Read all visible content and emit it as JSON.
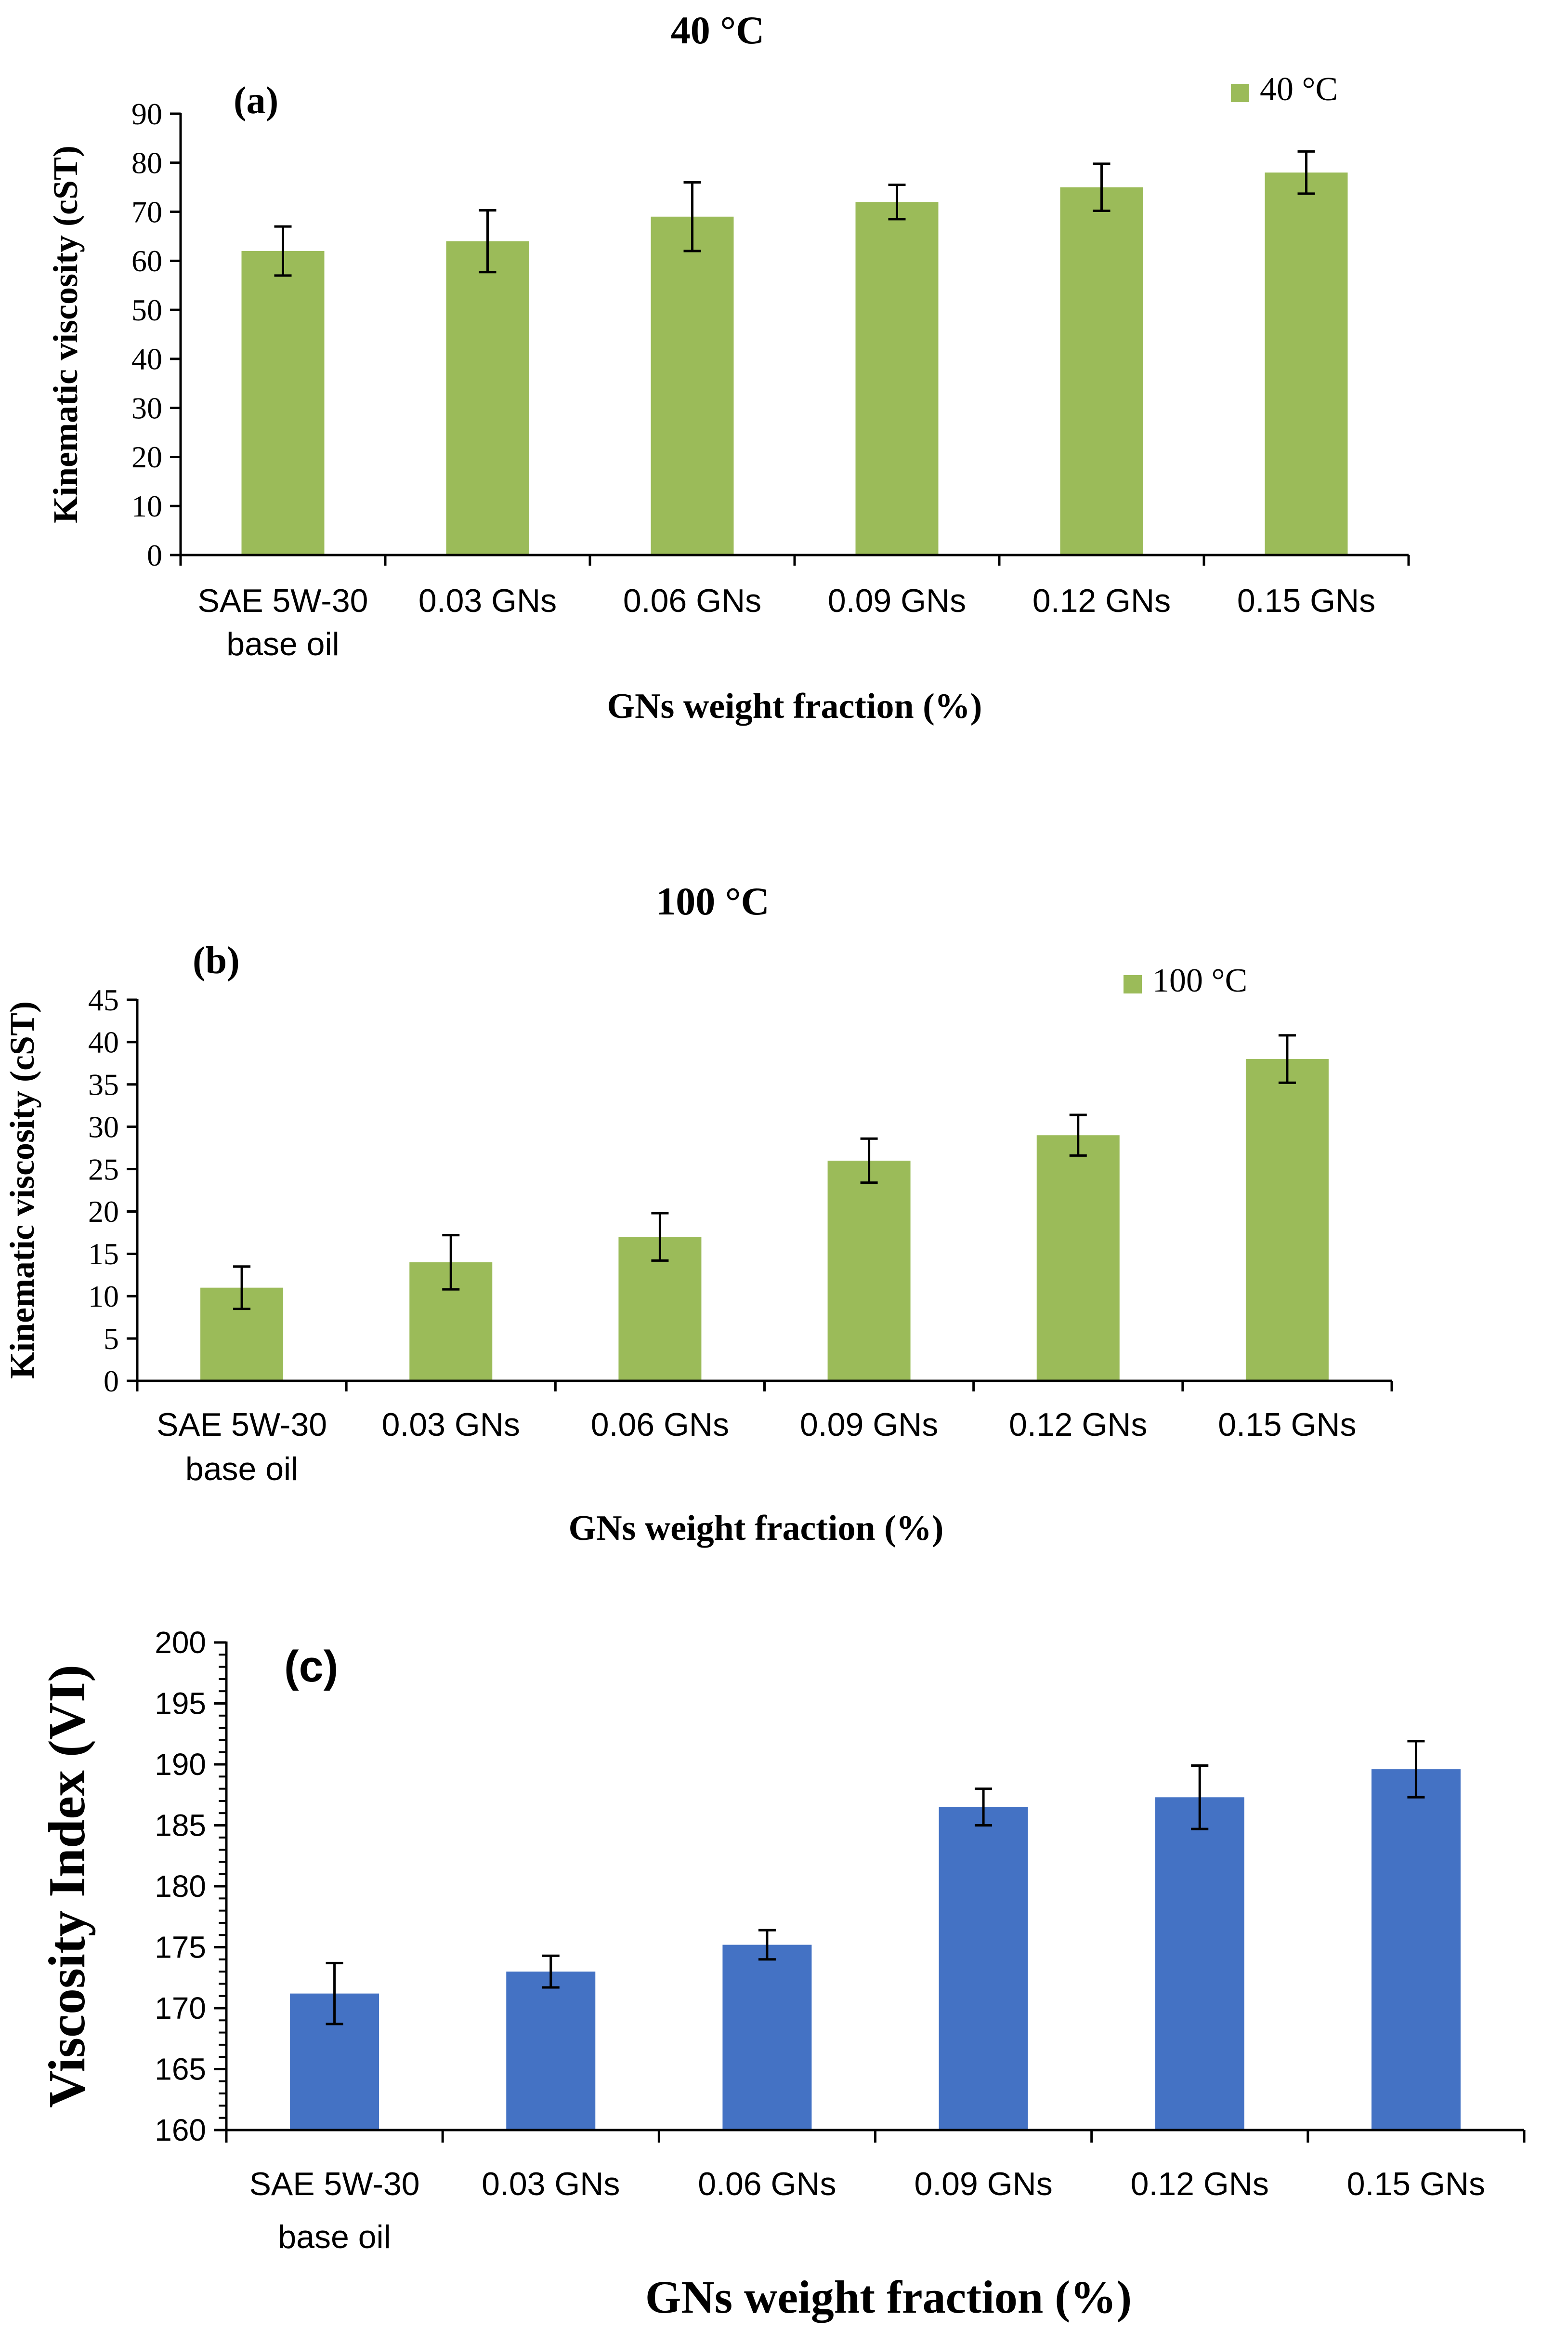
{
  "chart_data": [
    {
      "type": "bar",
      "panel_label": "(a)",
      "title": "40 °C",
      "legend": "40 °C",
      "legend_position": "top-right",
      "xlabel": "GNs weight fraction (%)",
      "ylabel": "Kinematic viscosity (cST)",
      "categories": [
        "SAE 5W-30 base oil",
        "0.03 GNs",
        "0.06 GNs",
        "0.09 GNs",
        "0.12 GNs",
        "0.15 GNs"
      ],
      "category_lines": [
        [
          "SAE 5W-30",
          "base oil"
        ],
        [
          "0.03 GNs"
        ],
        [
          "0.06 GNs"
        ],
        [
          "0.09 GNs"
        ],
        [
          "0.12 GNs"
        ],
        [
          "0.15 GNs"
        ]
      ],
      "values": [
        62,
        64,
        69,
        72,
        75,
        78
      ],
      "errors": [
        5,
        6.3,
        7,
        3.5,
        4.8,
        4.3
      ],
      "ylim": [
        0,
        90
      ],
      "ytick_step": 10,
      "color": "#9BBB59",
      "grid": false
    },
    {
      "type": "bar",
      "panel_label": "(b)",
      "title": "100 °C",
      "legend": "100 °C",
      "legend_position": "top-right",
      "xlabel": "GNs weight fraction (%)",
      "ylabel": "Kinematic viscosity (cST)",
      "categories": [
        "SAE 5W-30 base oil",
        "0.03 GNs",
        "0.06 GNs",
        "0.09 GNs",
        "0.12 GNs",
        "0.15 GNs"
      ],
      "category_lines": [
        [
          "SAE 5W-30",
          "base oil"
        ],
        [
          "0.03 GNs"
        ],
        [
          "0.06 GNs"
        ],
        [
          "0.09 GNs"
        ],
        [
          "0.12 GNs"
        ],
        [
          "0.15 GNs"
        ]
      ],
      "values": [
        11,
        14,
        17,
        26,
        29,
        38
      ],
      "errors": [
        2.5,
        3.2,
        2.8,
        2.6,
        2.4,
        2.8
      ],
      "ylim": [
        0,
        45
      ],
      "ytick_step": 5,
      "color": "#9BBB59",
      "grid": false
    },
    {
      "type": "bar",
      "panel_label": "(c)",
      "title": "",
      "legend": "",
      "xlabel": "GNs weight fraction (%)",
      "ylabel": "Viscosity Index (VI)",
      "categories": [
        "SAE 5W-30 base oil",
        "0.03 GNs",
        "0.06 GNs",
        "0.09 GNs",
        "0.12 GNs",
        "0.15 GNs"
      ],
      "category_lines": [
        [
          "SAE 5W-30",
          "base oil"
        ],
        [
          "0.03 GNs"
        ],
        [
          "0.06 GNs"
        ],
        [
          "0.09 GNs"
        ],
        [
          "0.12 GNs"
        ],
        [
          "0.15 GNs"
        ]
      ],
      "values": [
        171.2,
        173,
        175.2,
        186.5,
        187.3,
        189.6
      ],
      "errors": [
        2.5,
        1.3,
        1.2,
        1.5,
        2.6,
        2.3
      ],
      "ylim": [
        160,
        200
      ],
      "ytick_step": 5,
      "color": "#4472C4",
      "grid": false
    }
  ]
}
